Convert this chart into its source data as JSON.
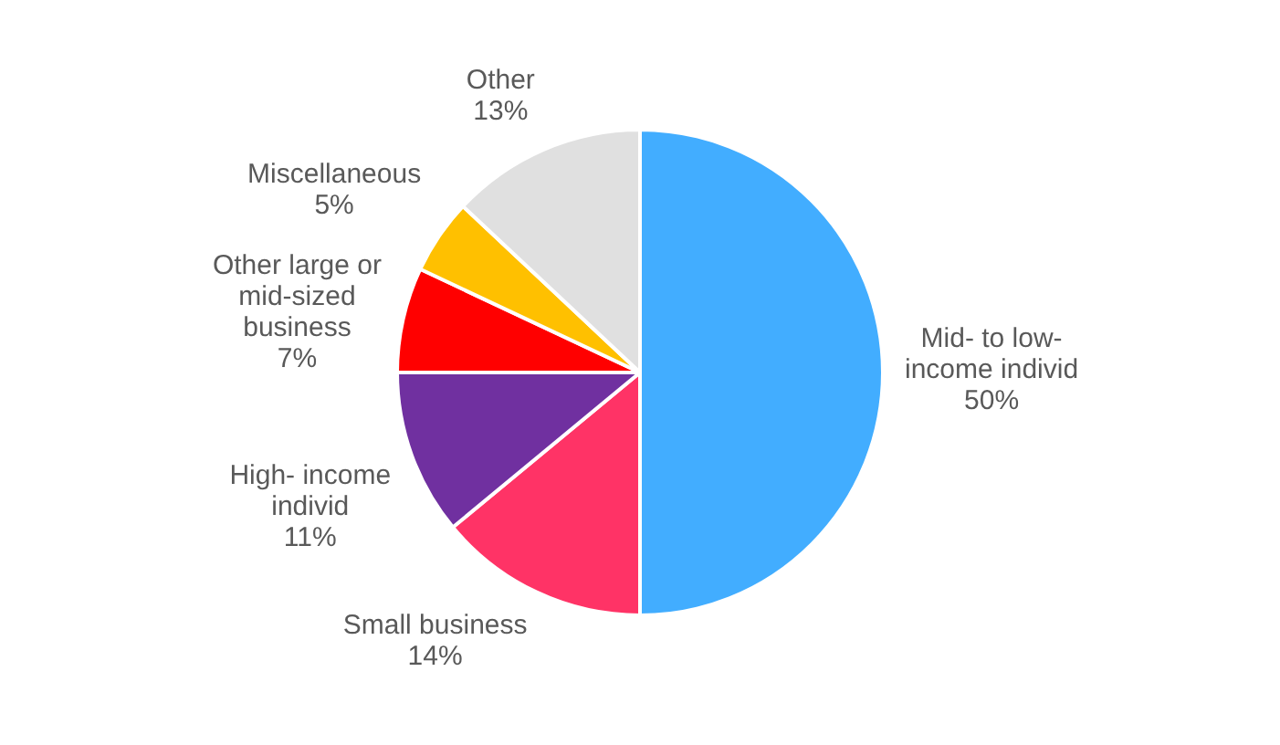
{
  "chart_data": {
    "type": "pie",
    "categories": [
      "Mid- to low-income individ",
      "Small business",
      "High- income individ",
      "Other large or mid-sized business",
      "Miscellaneous",
      "Other"
    ],
    "values": [
      50,
      14,
      11,
      7,
      5,
      13
    ],
    "colors": [
      "#42adff",
      "#ff3366",
      "#7030a0",
      "#ff0000",
      "#ffc000",
      "#e0e0e0"
    ],
    "value_labels": [
      "50%",
      "14%",
      "11%",
      "7%",
      "5%",
      "13%"
    ],
    "legend": false
  }
}
